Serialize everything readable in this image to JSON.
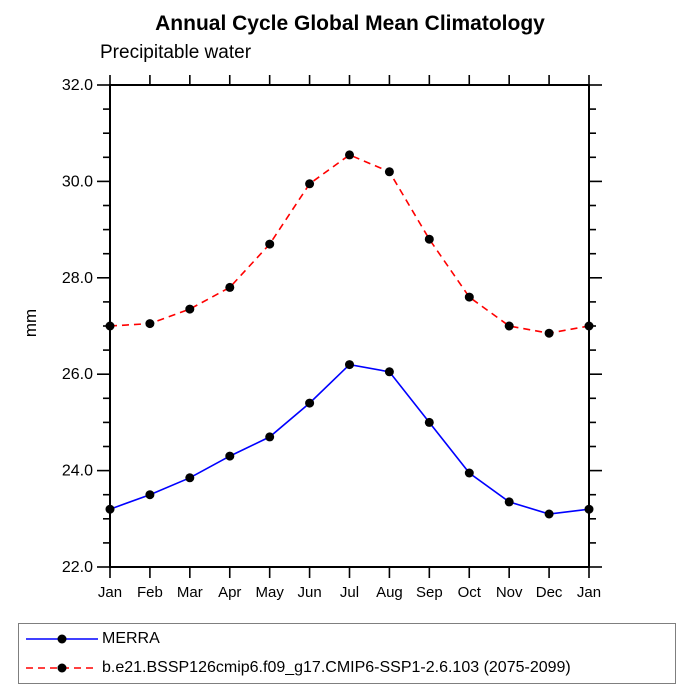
{
  "header": {
    "title": "Annual Cycle Global Mean Climatology",
    "subtitle": "Precipitable water"
  },
  "chart_data": {
    "type": "line",
    "title": "Annual Cycle Global Mean Climatology",
    "subtitle": "Precipitable water",
    "xlabel": "",
    "ylabel": "mm",
    "x_labels": [
      "Jan",
      "Feb",
      "Mar",
      "Apr",
      "May",
      "Jun",
      "Jul",
      "Aug",
      "Sep",
      "Oct",
      "Nov",
      "Dec",
      "Jan"
    ],
    "ylim": [
      22.0,
      32.0
    ],
    "ytick_step": 2.0,
    "yminor_step": 0.5,
    "ytick_labels": [
      "22.0",
      "24.0",
      "26.0",
      "28.0",
      "30.0",
      "32.0"
    ],
    "grid": false,
    "legend_position": "bottom-left-box",
    "series": [
      {
        "name": "MERRA",
        "color": "#0000ff",
        "style": "solid",
        "marker": "filled-circle",
        "marker_color": "#000000",
        "values": [
          23.2,
          23.5,
          23.85,
          24.3,
          24.7,
          25.4,
          26.2,
          26.05,
          25.0,
          23.95,
          23.35,
          23.1,
          23.2
        ]
      },
      {
        "name": "b.e21.BSSP126cmip6.f09_g17.CMIP6-SSP1-2.6.103 (2075-2099)",
        "color": "#ff0000",
        "style": "dashed",
        "marker": "filled-circle",
        "marker_color": "#000000",
        "values": [
          27.0,
          27.05,
          27.35,
          27.8,
          28.7,
          29.95,
          30.55,
          30.2,
          28.8,
          27.6,
          27.0,
          26.85,
          27.0
        ]
      }
    ]
  },
  "colors": {
    "background": "#ffffff",
    "axis": "#000000",
    "legend_border": "#7f7f7f"
  }
}
